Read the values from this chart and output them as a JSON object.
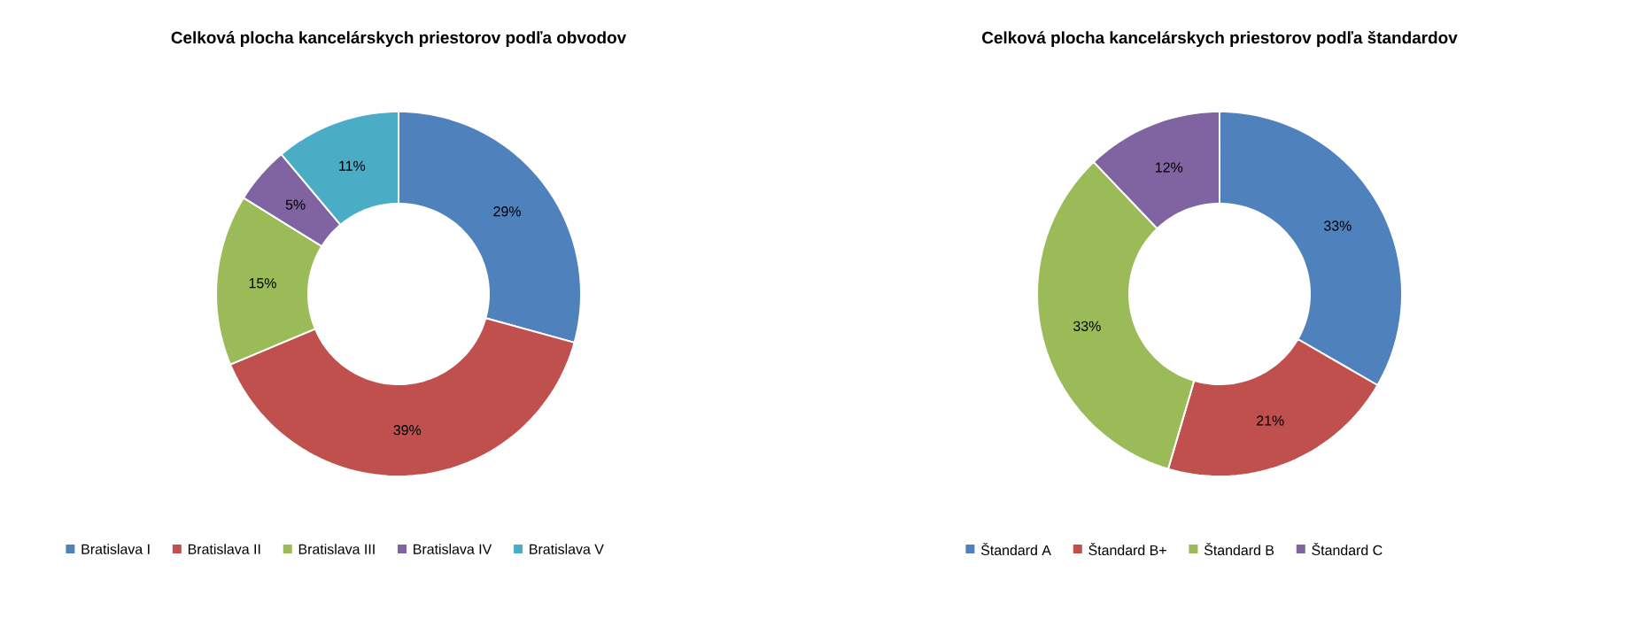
{
  "chart_data": [
    {
      "type": "donut",
      "title": "Celková plocha kancelárskych priestorov podľa obvodov",
      "categories": [
        "Bratislava I",
        "Bratislava II",
        "Bratislava III",
        "Bratislava IV",
        "Bratislava V"
      ],
      "values": [
        29,
        39,
        15,
        5,
        11
      ],
      "value_labels": [
        "29%",
        "39%",
        "15%",
        "5%",
        "11%"
      ],
      "colors": [
        "#4f81bd",
        "#c0504d",
        "#9bbb59",
        "#8064a2",
        "#4bacc6"
      ],
      "legend": "bottom"
    },
    {
      "type": "donut",
      "title": "Celková plocha kancelárskych priestorov podľa štandardov",
      "categories": [
        "Štandard A",
        "Štandard B+",
        "Štandard B",
        "Štandard C"
      ],
      "values": [
        33,
        21,
        33,
        12
      ],
      "value_labels": [
        "33%",
        "21%",
        "33%",
        "12%"
      ],
      "colors": [
        "#4f81bd",
        "#c0504d",
        "#9bbb59",
        "#8064a2"
      ],
      "legend": "bottom"
    }
  ]
}
